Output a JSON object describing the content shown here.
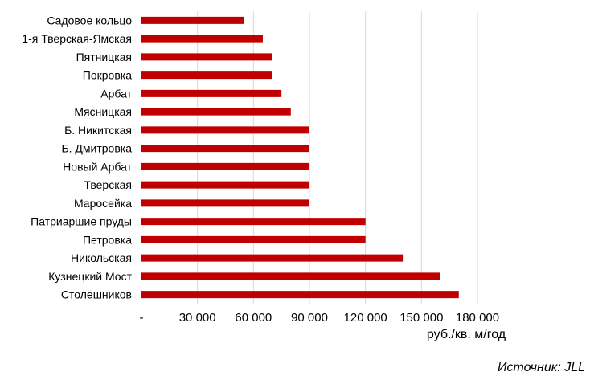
{
  "chart_data": {
    "type": "bar",
    "orientation": "horizontal",
    "categories": [
      "Садовое кольцо",
      "1-я Тверская-Ямская",
      "Пятницкая",
      "Покровка",
      "Арбат",
      "Мясницкая",
      "Б. Никитская",
      "Б. Дмитровка",
      "Новый Арбат",
      "Тверская",
      "Маросейка",
      "Патриаршие  пруды",
      "Петровка",
      "Никольская",
      "Кузнецкий Мост",
      "Столешников"
    ],
    "values": [
      55000,
      65000,
      70000,
      70000,
      75000,
      80000,
      90000,
      90000,
      90000,
      90000,
      90000,
      120000,
      120000,
      140000,
      160000,
      170000
    ],
    "xlim": [
      0,
      180000
    ],
    "x_ticks": [
      0,
      30000,
      60000,
      90000,
      120000,
      150000,
      180000
    ],
    "x_tick_labels": [
      "-",
      "30 000",
      "60 000",
      "90 000",
      "120 000",
      "150 000",
      "180 000"
    ],
    "xlabel": "руб./кв. м/год",
    "grid": true,
    "bar_color": "#c00000",
    "grid_color": "#d9d9d9"
  },
  "source_label": "Источник: JLL"
}
